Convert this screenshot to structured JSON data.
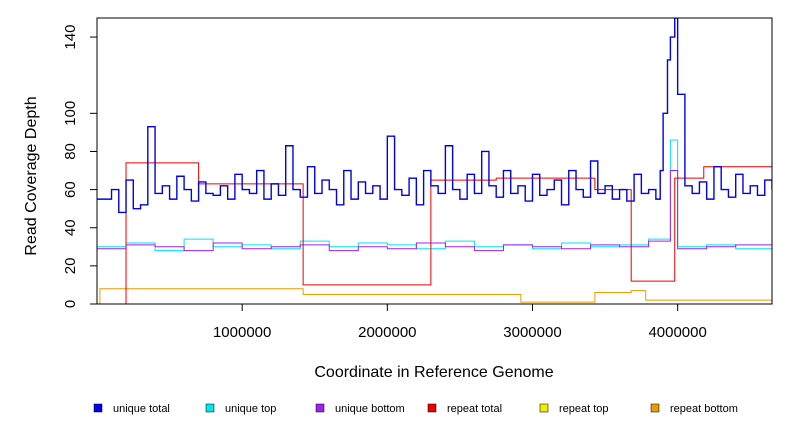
{
  "chart_data": {
    "type": "line",
    "title": "",
    "xlabel": "Coordinate in Reference Genome",
    "ylabel": "Read Coverage Depth",
    "xlim": [
      0,
      4650000
    ],
    "ylim": [
      0,
      150
    ],
    "x_ticks": [
      1000000,
      2000000,
      3000000,
      4000000
    ],
    "x_tick_labels": [
      "1000000",
      "2000000",
      "3000000",
      "4000000"
    ],
    "y_ticks": [
      0,
      20,
      40,
      60,
      80,
      100,
      140
    ],
    "y_tick_labels": [
      "0",
      "20",
      "40",
      "60",
      "80",
      "100",
      "140"
    ],
    "grid": false,
    "legend_position": "bottom",
    "series": [
      {
        "name": "unique total",
        "color": "#0000ee",
        "x": [
          0,
          100000,
          150000,
          200000,
          250000,
          300000,
          350000,
          400000,
          450000,
          500000,
          550000,
          600000,
          650000,
          700000,
          750000,
          800000,
          850000,
          900000,
          950000,
          1000000,
          1050000,
          1100000,
          1150000,
          1200000,
          1250000,
          1300000,
          1350000,
          1400000,
          1450000,
          1500000,
          1550000,
          1600000,
          1650000,
          1700000,
          1750000,
          1800000,
          1850000,
          1900000,
          1950000,
          2000000,
          2050000,
          2100000,
          2150000,
          2200000,
          2250000,
          2300000,
          2350000,
          2400000,
          2450000,
          2500000,
          2550000,
          2600000,
          2650000,
          2700000,
          2750000,
          2800000,
          2850000,
          2900000,
          2950000,
          3000000,
          3050000,
          3100000,
          3150000,
          3200000,
          3250000,
          3300000,
          3350000,
          3400000,
          3450000,
          3500000,
          3550000,
          3600000,
          3650000,
          3700000,
          3750000,
          3800000,
          3850000,
          3880000,
          3900000,
          3930000,
          3950000,
          3980000,
          4000000,
          4050000,
          4100000,
          4150000,
          4200000,
          4250000,
          4300000,
          4350000,
          4400000,
          4450000,
          4500000,
          4550000,
          4600000,
          4650000
        ],
        "values": [
          55,
          60,
          48,
          65,
          50,
          52,
          93,
          58,
          62,
          55,
          67,
          60,
          54,
          64,
          58,
          57,
          62,
          55,
          68,
          60,
          58,
          70,
          55,
          63,
          57,
          83,
          60,
          56,
          72,
          58,
          65,
          60,
          52,
          70,
          55,
          64,
          58,
          62,
          55,
          88,
          60,
          57,
          66,
          52,
          70,
          62,
          58,
          83,
          60,
          55,
          68,
          58,
          80,
          62,
          56,
          70,
          58,
          62,
          54,
          68,
          57,
          60,
          65,
          52,
          70,
          60,
          56,
          75,
          58,
          62,
          55,
          60,
          54,
          68,
          58,
          60,
          55,
          70,
          100,
          128,
          140,
          150,
          110,
          62,
          58,
          64,
          55,
          72,
          60,
          56,
          68,
          58,
          62,
          57,
          65,
          60
        ]
      },
      {
        "name": "unique top",
        "color": "#00e5ee",
        "x": [
          0,
          200000,
          400000,
          600000,
          800000,
          1000000,
          1200000,
          1400000,
          1600000,
          1800000,
          2000000,
          2200000,
          2400000,
          2600000,
          2800000,
          3000000,
          3200000,
          3400000,
          3600000,
          3800000,
          3950000,
          4000000,
          4200000,
          4400000,
          4650000
        ],
        "values": [
          30,
          32,
          28,
          34,
          30,
          31,
          29,
          33,
          30,
          32,
          31,
          29,
          33,
          30,
          31,
          29,
          32,
          30,
          31,
          34,
          86,
          30,
          31,
          29,
          30
        ]
      },
      {
        "name": "unique bottom",
        "color": "#a020f0",
        "x": [
          0,
          200000,
          400000,
          600000,
          800000,
          1000000,
          1200000,
          1400000,
          1600000,
          1800000,
          2000000,
          2200000,
          2400000,
          2600000,
          2800000,
          3000000,
          3200000,
          3400000,
          3600000,
          3800000,
          3950000,
          4000000,
          4200000,
          4400000,
          4650000
        ],
        "values": [
          29,
          31,
          30,
          28,
          32,
          29,
          30,
          31,
          28,
          30,
          29,
          32,
          30,
          28,
          31,
          30,
          29,
          31,
          30,
          33,
          70,
          29,
          30,
          31,
          29
        ]
      },
      {
        "name": "repeat total",
        "color": "#ee0000",
        "x": [
          0,
          200000,
          700000,
          1420000,
          2300000,
          2750000,
          3430000,
          3680000,
          3980000,
          4180000,
          4650000
        ],
        "values": [
          0,
          74,
          63,
          10,
          65,
          66,
          60,
          12,
          66,
          72,
          0
        ]
      },
      {
        "name": "repeat top",
        "color": "#eeee00",
        "x": [
          0,
          1000000,
          2000000,
          3000000,
          4000000,
          4650000
        ],
        "values": [
          0,
          0,
          0,
          0,
          0,
          0
        ]
      },
      {
        "name": "repeat bottom",
        "color": "#ee9a00",
        "x": [
          0,
          20000,
          1420000,
          2920000,
          3430000,
          3680000,
          3780000,
          4650000
        ],
        "values": [
          0,
          8,
          5,
          1,
          6,
          7,
          2,
          0
        ]
      }
    ]
  }
}
